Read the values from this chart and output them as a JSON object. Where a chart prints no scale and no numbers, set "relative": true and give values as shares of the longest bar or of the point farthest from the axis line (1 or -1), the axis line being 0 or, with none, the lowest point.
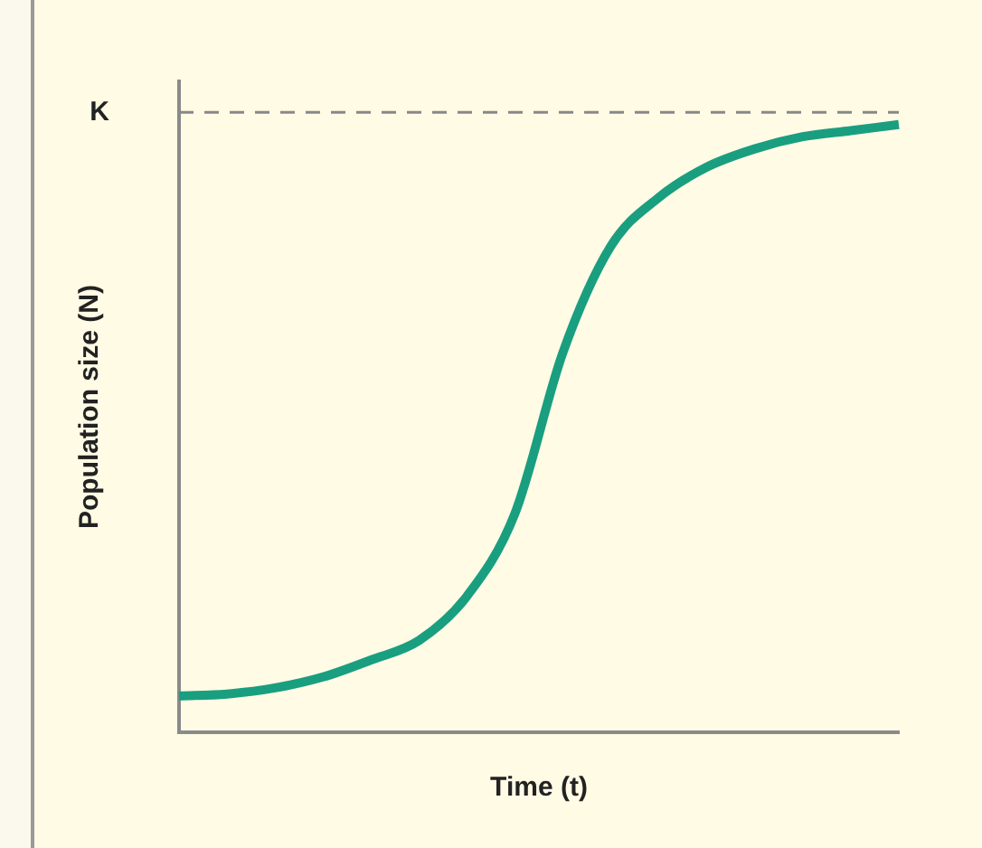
{
  "chart_data": {
    "type": "line",
    "relative": true,
    "xlabel": "Time (t)",
    "ylabel": "Population size (N)",
    "categories": [
      null,
      null,
      null,
      null,
      null,
      null,
      null,
      null,
      null,
      null,
      null,
      null,
      null,
      null,
      null,
      null
    ],
    "series": [
      {
        "color": "#1a9e80",
        "values": [
          0.06,
          0.063,
          0.073,
          0.091,
          0.119,
          0.151,
          0.224,
          0.36,
          0.625,
          0.8,
          0.88,
          0.93,
          0.96,
          0.98,
          0.99,
          1
        ]
      }
    ],
    "ref_lines": [
      {
        "axis": "y",
        "value": 1.02,
        "label": "K",
        "color": "#888888",
        "line_style": "dashed"
      }
    ],
    "grid": false,
    "legend": false,
    "marker": "none",
    "line_style": "solid"
  }
}
